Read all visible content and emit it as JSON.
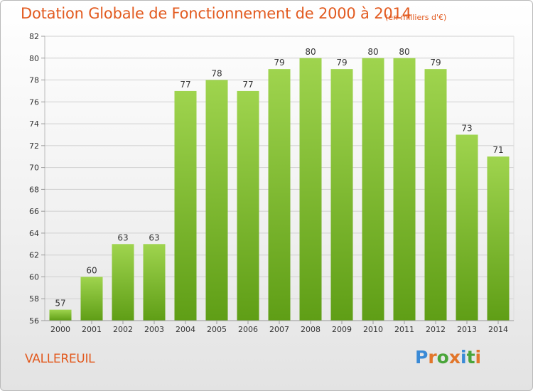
{
  "header": {
    "title": "Dotation Globale de Fonctionnement de 2000 à 2014",
    "subtitle": "(en milliers d'€)"
  },
  "footer": {
    "commune": "VALLEREUIL",
    "brand": "Proxiti"
  },
  "chart_data": {
    "type": "bar",
    "title": "Dotation Globale de Fonctionnement de 2000 à 2014",
    "subtitle": "(en milliers d'€)",
    "xlabel": "",
    "ylabel": "",
    "categories": [
      "2000",
      "2001",
      "2002",
      "2003",
      "2004",
      "2005",
      "2006",
      "2007",
      "2008",
      "2009",
      "2010",
      "2011",
      "2012",
      "2013",
      "2014"
    ],
    "values": [
      57,
      60,
      63,
      63,
      77,
      78,
      77,
      79,
      80,
      79,
      80,
      80,
      79,
      73,
      71
    ],
    "ylim": [
      56,
      82
    ],
    "yticks": [
      56,
      58,
      60,
      62,
      64,
      66,
      68,
      70,
      72,
      74,
      76,
      78,
      80,
      82
    ],
    "grid": true,
    "legend": "none",
    "colors": {
      "bar_top": "#9fd44e",
      "bar_bottom": "#5f9e16",
      "grid": "#cfcfcf",
      "axis_text": "#333333",
      "title": "#e25a1f"
    }
  }
}
